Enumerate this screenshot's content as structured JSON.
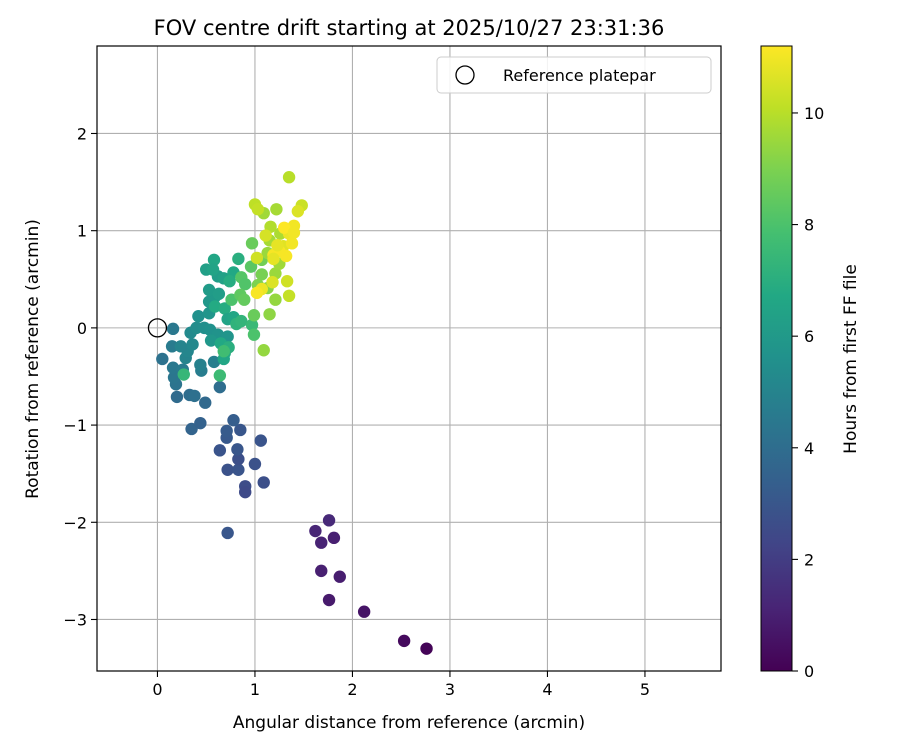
{
  "chart_data": {
    "type": "scatter",
    "title": "FOV centre drift starting at 2025/10/27 23:31:36",
    "xlabel": "Angular distance from reference (arcmin)",
    "ylabel": "Rotation from reference (arcmin)",
    "xlim": [
      -0.62,
      5.78
    ],
    "ylim": [
      -3.53,
      2.9
    ],
    "xticks": [
      0,
      1,
      2,
      3,
      4,
      5
    ],
    "yticks": [
      -3,
      -2,
      -1,
      0,
      1,
      2
    ],
    "grid": true,
    "legend": {
      "placement": "top-right",
      "entries": [
        "Reference platepar"
      ]
    },
    "reference_point": {
      "x": 0.0,
      "y": 0.0
    },
    "colorbar": {
      "label": "Hours from first FF file",
      "colormap": "viridis",
      "range": [
        0,
        11.2
      ],
      "ticks": [
        0,
        2,
        4,
        6,
        8,
        10
      ]
    },
    "points": [
      {
        "x": 2.76,
        "y": -3.3,
        "c": 0.1
      },
      {
        "x": 2.53,
        "y": -3.22,
        "c": 0.3
      },
      {
        "x": 2.12,
        "y": -2.92,
        "c": 0.6
      },
      {
        "x": 1.76,
        "y": -2.8,
        "c": 0.8
      },
      {
        "x": 1.87,
        "y": -2.56,
        "c": 0.9
      },
      {
        "x": 1.68,
        "y": -2.5,
        "c": 1.0
      },
      {
        "x": 1.68,
        "y": -2.21,
        "c": 1.1
      },
      {
        "x": 1.62,
        "y": -2.09,
        "c": 1.2
      },
      {
        "x": 1.81,
        "y": -2.16,
        "c": 1.0
      },
      {
        "x": 1.76,
        "y": -1.98,
        "c": 1.3
      },
      {
        "x": 0.72,
        "y": -2.11,
        "c": 3.0
      },
      {
        "x": 0.9,
        "y": -1.63,
        "c": 2.6
      },
      {
        "x": 0.9,
        "y": -1.69,
        "c": 2.5
      },
      {
        "x": 1.09,
        "y": -1.59,
        "c": 2.7
      },
      {
        "x": 0.72,
        "y": -1.46,
        "c": 2.8
      },
      {
        "x": 0.83,
        "y": -1.46,
        "c": 2.9
      },
      {
        "x": 0.83,
        "y": -1.35,
        "c": 2.7
      },
      {
        "x": 1.0,
        "y": -1.4,
        "c": 2.8
      },
      {
        "x": 0.82,
        "y": -1.25,
        "c": 3.0
      },
      {
        "x": 0.64,
        "y": -1.26,
        "c": 2.9
      },
      {
        "x": 0.71,
        "y": -1.13,
        "c": 3.1
      },
      {
        "x": 0.71,
        "y": -1.06,
        "c": 3.2
      },
      {
        "x": 0.85,
        "y": -1.05,
        "c": 3.0
      },
      {
        "x": 1.06,
        "y": -1.16,
        "c": 2.9
      },
      {
        "x": 0.78,
        "y": -0.95,
        "c": 3.3
      },
      {
        "x": 0.35,
        "y": -1.04,
        "c": 3.6
      },
      {
        "x": 0.44,
        "y": -0.98,
        "c": 3.5
      },
      {
        "x": 0.49,
        "y": -0.77,
        "c": 3.8
      },
      {
        "x": 0.2,
        "y": -0.71,
        "c": 3.9
      },
      {
        "x": 0.33,
        "y": -0.69,
        "c": 4.0
      },
      {
        "x": 0.38,
        "y": -0.7,
        "c": 4.1
      },
      {
        "x": 0.64,
        "y": -0.61,
        "c": 4.0
      },
      {
        "x": 0.19,
        "y": -0.58,
        "c": 4.3
      },
      {
        "x": 0.17,
        "y": -0.51,
        "c": 4.4
      },
      {
        "x": 0.05,
        "y": -0.32,
        "c": 4.2
      },
      {
        "x": 0.16,
        "y": -0.41,
        "c": 4.5
      },
      {
        "x": 0.26,
        "y": -0.43,
        "c": 4.6
      },
      {
        "x": 0.45,
        "y": -0.44,
        "c": 4.7
      },
      {
        "x": 0.44,
        "y": -0.38,
        "c": 4.9
      },
      {
        "x": 0.58,
        "y": -0.35,
        "c": 4.8
      },
      {
        "x": 0.15,
        "y": -0.19,
        "c": 4.6
      },
      {
        "x": 0.16,
        "y": -0.01,
        "c": 4.5
      },
      {
        "x": 0.29,
        "y": -0.31,
        "c": 5.0
      },
      {
        "x": 0.31,
        "y": -0.24,
        "c": 5.1
      },
      {
        "x": 0.36,
        "y": -0.17,
        "c": 5.2
      },
      {
        "x": 0.24,
        "y": -0.19,
        "c": 5.0
      },
      {
        "x": 0.34,
        "y": -0.05,
        "c": 5.3
      },
      {
        "x": 0.4,
        "y": 0.0,
        "c": 5.4
      },
      {
        "x": 0.48,
        "y": 0.0,
        "c": 5.5
      },
      {
        "x": 0.54,
        "y": -0.02,
        "c": 5.6
      },
      {
        "x": 0.62,
        "y": -0.07,
        "c": 5.7
      },
      {
        "x": 0.72,
        "y": -0.09,
        "c": 5.8
      },
      {
        "x": 0.55,
        "y": -0.13,
        "c": 5.9
      },
      {
        "x": 0.42,
        "y": 0.12,
        "c": 5.6
      },
      {
        "x": 0.53,
        "y": 0.15,
        "c": 5.8
      },
      {
        "x": 0.53,
        "y": 0.27,
        "c": 5.9
      },
      {
        "x": 0.59,
        "y": 0.32,
        "c": 6.0
      },
      {
        "x": 0.53,
        "y": 0.39,
        "c": 6.1
      },
      {
        "x": 0.63,
        "y": 0.35,
        "c": 6.2
      },
      {
        "x": 0.5,
        "y": 0.6,
        "c": 6.3
      },
      {
        "x": 0.62,
        "y": 0.53,
        "c": 6.2
      },
      {
        "x": 0.58,
        "y": 0.7,
        "c": 6.6
      },
      {
        "x": 0.57,
        "y": 0.6,
        "c": 6.5
      },
      {
        "x": 0.68,
        "y": 0.51,
        "c": 6.4
      },
      {
        "x": 0.78,
        "y": 0.57,
        "c": 6.7
      },
      {
        "x": 0.83,
        "y": 0.71,
        "c": 7.0
      },
      {
        "x": 0.74,
        "y": 0.48,
        "c": 6.9
      },
      {
        "x": 0.59,
        "y": 0.22,
        "c": 6.8
      },
      {
        "x": 0.69,
        "y": 0.2,
        "c": 6.9
      },
      {
        "x": 0.72,
        "y": 0.09,
        "c": 6.5
      },
      {
        "x": 0.78,
        "y": 0.11,
        "c": 6.6
      },
      {
        "x": 0.65,
        "y": -0.16,
        "c": 6.7
      },
      {
        "x": 0.69,
        "y": -0.26,
        "c": 6.8
      },
      {
        "x": 0.68,
        "y": -0.32,
        "c": 6.6
      },
      {
        "x": 0.73,
        "y": -0.2,
        "c": 7.0
      },
      {
        "x": 0.81,
        "y": 0.04,
        "c": 7.2
      },
      {
        "x": 0.86,
        "y": 0.07,
        "c": 7.3
      },
      {
        "x": 0.97,
        "y": 0.03,
        "c": 7.5
      },
      {
        "x": 0.27,
        "y": -0.48,
        "c": 7.4
      },
      {
        "x": 0.64,
        "y": -0.49,
        "c": 7.6
      },
      {
        "x": 0.68,
        "y": -0.24,
        "c": 7.7
      },
      {
        "x": 0.76,
        "y": 0.29,
        "c": 8.0
      },
      {
        "x": 0.86,
        "y": 0.52,
        "c": 8.2
      },
      {
        "x": 0.96,
        "y": 0.63,
        "c": 8.3
      },
      {
        "x": 0.9,
        "y": 0.45,
        "c": 8.1
      },
      {
        "x": 0.85,
        "y": 0.34,
        "c": 8.4
      },
      {
        "x": 0.89,
        "y": 0.29,
        "c": 8.5
      },
      {
        "x": 0.99,
        "y": 0.13,
        "c": 8.6
      },
      {
        "x": 0.99,
        "y": -0.07,
        "c": 8.0
      },
      {
        "x": 0.97,
        "y": 0.87,
        "c": 8.6
      },
      {
        "x": 1.07,
        "y": 0.7,
        "c": 8.8
      },
      {
        "x": 1.07,
        "y": 0.55,
        "c": 8.9
      },
      {
        "x": 1.03,
        "y": 0.44,
        "c": 9.0
      },
      {
        "x": 1.13,
        "y": 0.41,
        "c": 9.2
      },
      {
        "x": 1.15,
        "y": 0.14,
        "c": 9.3
      },
      {
        "x": 1.09,
        "y": -0.23,
        "c": 9.4
      },
      {
        "x": 1.21,
        "y": 0.29,
        "c": 9.4
      },
      {
        "x": 1.21,
        "y": 0.56,
        "c": 9.5
      },
      {
        "x": 1.25,
        "y": 0.66,
        "c": 9.6
      },
      {
        "x": 1.13,
        "y": 0.77,
        "c": 9.5
      },
      {
        "x": 1.15,
        "y": 0.9,
        "c": 9.7
      },
      {
        "x": 1.26,
        "y": 0.97,
        "c": 9.8
      },
      {
        "x": 1.16,
        "y": 1.04,
        "c": 9.9
      },
      {
        "x": 1.09,
        "y": 1.18,
        "c": 9.6
      },
      {
        "x": 1.22,
        "y": 1.22,
        "c": 9.7
      },
      {
        "x": 1.0,
        "y": 1.27,
        "c": 10.1
      },
      {
        "x": 1.03,
        "y": 1.22,
        "c": 10.2
      },
      {
        "x": 1.35,
        "y": 1.55,
        "c": 10.0
      },
      {
        "x": 1.48,
        "y": 1.26,
        "c": 10.3
      },
      {
        "x": 1.44,
        "y": 1.2,
        "c": 10.6
      },
      {
        "x": 1.35,
        "y": 0.33,
        "c": 10.2
      },
      {
        "x": 1.33,
        "y": 0.48,
        "c": 10.4
      },
      {
        "x": 1.29,
        "y": 0.84,
        "c": 10.7
      },
      {
        "x": 1.35,
        "y": 0.97,
        "c": 10.9
      },
      {
        "x": 1.4,
        "y": 1.05,
        "c": 11.0
      },
      {
        "x": 1.38,
        "y": 0.87,
        "c": 11.0
      },
      {
        "x": 1.32,
        "y": 0.74,
        "c": 11.1
      },
      {
        "x": 1.25,
        "y": 0.79,
        "c": 11.1
      },
      {
        "x": 1.19,
        "y": 0.75,
        "c": 11.1
      },
      {
        "x": 1.19,
        "y": 0.71,
        "c": 10.8
      },
      {
        "x": 1.3,
        "y": 1.03,
        "c": 11.2
      },
      {
        "x": 1.4,
        "y": 0.98,
        "c": 11.0
      },
      {
        "x": 1.07,
        "y": 0.4,
        "c": 10.9
      },
      {
        "x": 1.02,
        "y": 0.36,
        "c": 11.1
      },
      {
        "x": 1.02,
        "y": 0.72,
        "c": 10.4
      },
      {
        "x": 1.11,
        "y": 0.95,
        "c": 10.5
      },
      {
        "x": 1.18,
        "y": 0.47,
        "c": 10.6
      },
      {
        "x": 1.23,
        "y": 0.85,
        "c": 10.8
      }
    ]
  }
}
